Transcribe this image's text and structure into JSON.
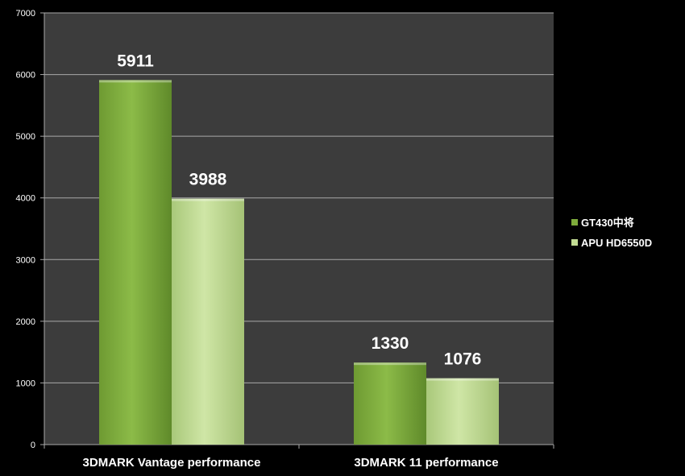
{
  "chart_data": {
    "type": "bar",
    "categories": [
      "3DMARK Vantage performance",
      "3DMARK 11 performance"
    ],
    "series": [
      {
        "name": "GT430中将",
        "values": [
          5911,
          1330
        ],
        "color": "#7eab3b"
      },
      {
        "name": "APU HD6550D",
        "values": [
          3988,
          1076
        ],
        "color": "#c3dc94"
      }
    ],
    "ylim": [
      0,
      7000
    ],
    "yticks": [
      0,
      1000,
      2000,
      3000,
      4000,
      5000,
      6000,
      7000
    ],
    "grid": true,
    "legend": "right",
    "plot_background": "#3c3c3c",
    "page_background": "#000000"
  }
}
